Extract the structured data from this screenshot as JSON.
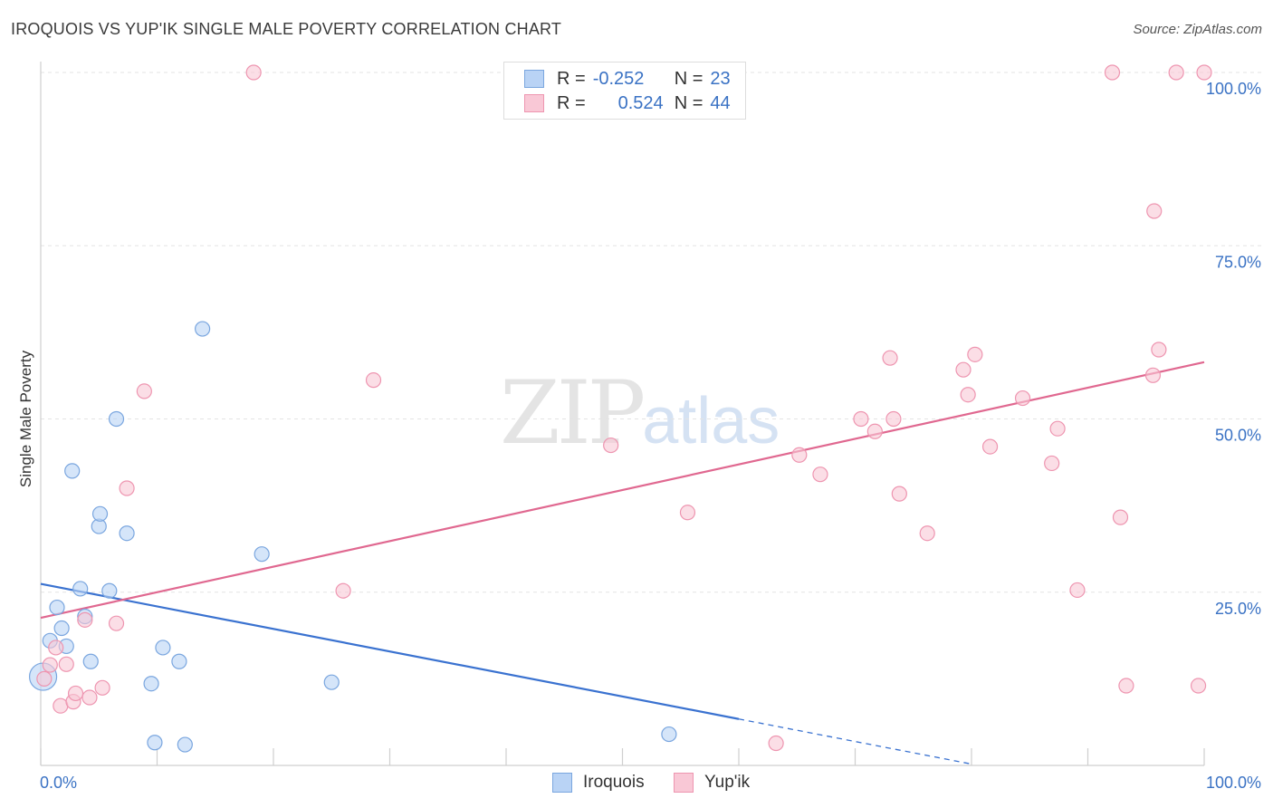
{
  "header": {
    "title": "IROQUOIS VS YUP'IK SINGLE MALE POVERTY CORRELATION CHART",
    "source": "Source: ZipAtlas.com"
  },
  "watermark": {
    "zip": "ZIP",
    "atlas": "atlas"
  },
  "legend": {
    "rows": [
      {
        "r_label": "R =",
        "r_value": "-0.252",
        "n_label": "N =",
        "n_value": "23"
      },
      {
        "r_label": "R =",
        "r_value": "0.524",
        "n_label": "N =",
        "n_value": "44"
      }
    ]
  },
  "bottom_legend": {
    "iroquois": "Iroquois",
    "yupik": "Yup'ik"
  },
  "colors": {
    "iroquois_fill": "#b9d3f5",
    "iroquois_stroke": "#7aa6df",
    "iroquois_line": "#3a72d0",
    "yupik_fill": "#f9c8d6",
    "yupik_stroke": "#ee95b0",
    "yupik_line": "#e06890",
    "tick_text": "#3a72c4",
    "grid": "#e3e3e3"
  },
  "chart_data": {
    "type": "scatter",
    "title": "IROQUOIS VS YUP'IK SINGLE MALE POVERTY CORRELATION CHART",
    "xlabel": "",
    "ylabel": "Single Male Poverty",
    "xlim": [
      0,
      100
    ],
    "ylim": [
      0,
      100
    ],
    "x_tick_labels": [
      "0.0%",
      "100.0%"
    ],
    "y_ticks": [
      25,
      50,
      75,
      100
    ],
    "y_tick_labels": [
      "25.0%",
      "50.0%",
      "75.0%",
      "100.0%"
    ],
    "grid": true,
    "series": [
      {
        "name": "Iroquois",
        "r": -0.252,
        "n": 23,
        "points": [
          [
            0.2,
            12.8
          ],
          [
            0.8,
            18
          ],
          [
            1.4,
            22.8
          ],
          [
            1.8,
            19.8
          ],
          [
            2.2,
            17.2
          ],
          [
            2.7,
            42.5
          ],
          [
            3.4,
            25.5
          ],
          [
            3.8,
            21.5
          ],
          [
            4.3,
            15
          ],
          [
            5.0,
            34.5
          ],
          [
            5.1,
            36.3
          ],
          [
            5.9,
            25.2
          ],
          [
            6.5,
            50
          ],
          [
            7.4,
            33.5
          ],
          [
            9.5,
            11.8
          ],
          [
            9.8,
            3.3
          ],
          [
            10.5,
            17
          ],
          [
            11.9,
            15
          ],
          [
            12.4,
            3.0
          ],
          [
            13.9,
            63
          ],
          [
            19.0,
            30.5
          ],
          [
            25.0,
            12
          ],
          [
            54.0,
            4.5
          ]
        ],
        "trend": {
          "x_start": 0,
          "y_start": 26.2,
          "x_solid_end": 60,
          "x_end": 80,
          "y_end": 0.2
        }
      },
      {
        "name": "Yup'ik",
        "r": 0.524,
        "n": 44,
        "points": [
          [
            0.3,
            12.5
          ],
          [
            0.8,
            14.5
          ],
          [
            1.3,
            17
          ],
          [
            1.7,
            8.6
          ],
          [
            2.2,
            14.6
          ],
          [
            2.8,
            9.2
          ],
          [
            3.0,
            10.4
          ],
          [
            3.8,
            21
          ],
          [
            4.2,
            9.8
          ],
          [
            5.3,
            11.2
          ],
          [
            6.5,
            20.5
          ],
          [
            7.4,
            40
          ],
          [
            8.9,
            54
          ],
          [
            18.3,
            100
          ],
          [
            26.0,
            25.2
          ],
          [
            28.6,
            55.6
          ],
          [
            49.0,
            46.2
          ],
          [
            55.6,
            36.5
          ],
          [
            63.2,
            3.2
          ],
          [
            65.2,
            44.8
          ],
          [
            67.0,
            42
          ],
          [
            70.5,
            50
          ],
          [
            71.7,
            48.2
          ],
          [
            73.0,
            58.8
          ],
          [
            73.3,
            50
          ],
          [
            73.8,
            39.2
          ],
          [
            76.2,
            33.5
          ],
          [
            79.3,
            57.1
          ],
          [
            79.7,
            53.5
          ],
          [
            80.3,
            59.3
          ],
          [
            81.6,
            46
          ],
          [
            84.4,
            53
          ],
          [
            86.9,
            43.6
          ],
          [
            87.4,
            48.6
          ],
          [
            89.1,
            25.3
          ],
          [
            92.1,
            100
          ],
          [
            92.8,
            35.8
          ],
          [
            93.3,
            11.5
          ],
          [
            95.6,
            56.3
          ],
          [
            95.7,
            80
          ],
          [
            96.1,
            60
          ],
          [
            97.6,
            100
          ],
          [
            99.5,
            11.5
          ],
          [
            100,
            100
          ]
        ],
        "trend": {
          "x_start": 0,
          "y_start": 21.3,
          "x_end": 100,
          "y_end": 58.2
        }
      }
    ]
  }
}
